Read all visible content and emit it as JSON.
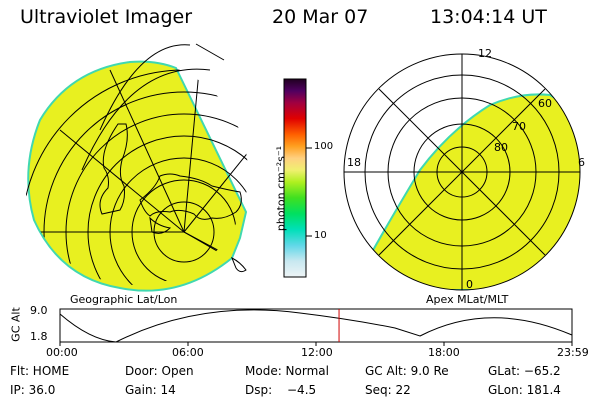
{
  "header": {
    "title": "Ultraviolet Imager",
    "date": "20 Mar 07",
    "time": "13:04:14 UT"
  },
  "left_panel": {
    "caption": "Geographic Lat/Lon"
  },
  "right_panel": {
    "caption": "Apex MLat/MLT",
    "mlt_labels": {
      "top": "12",
      "left": "18",
      "right": "6",
      "bottom": "0"
    },
    "lat_labels": [
      "80",
      "70",
      "60"
    ]
  },
  "colorbar": {
    "unit_label": "photon cm⁻²s⁻¹",
    "ticks": [
      "100",
      "10"
    ],
    "colors": [
      "#dfeef4",
      "#bfe6f0",
      "#5fd8e8",
      "#00e0b0",
      "#00e060",
      "#30e030",
      "#a0f030",
      "#f0f070",
      "#ffd080",
      "#ff9030",
      "#ff4000",
      "#e00000",
      "#a00050",
      "#500060",
      "#200020"
    ]
  },
  "altitude_strip": {
    "ylabel": "GC Alt",
    "y_ticks": [
      "9.0",
      "1.8"
    ],
    "x_ticks": [
      "00:00",
      "06:00",
      "12:00",
      "18:00",
      "23:59"
    ],
    "current_time_fraction": 0.545
  },
  "footer": {
    "row1": {
      "flt": "Flt: HOME",
      "door": "Door: Open",
      "mode": "Mode: Normal",
      "gcalt": "GC Alt: 9.0 Re",
      "glat": "GLat: −65.2"
    },
    "row2": {
      "ip": "IP: 36.0",
      "gain": "Gain: 14",
      "dsp_label": "Dsp:",
      "dsp_value": "−4.5",
      "seq": "Seq: 22",
      "glon": "GLon: 181.4"
    }
  },
  "colors": {
    "image_fill": "#e8f020",
    "image_edge": "#40d8b0",
    "time_marker": "#d00000"
  }
}
